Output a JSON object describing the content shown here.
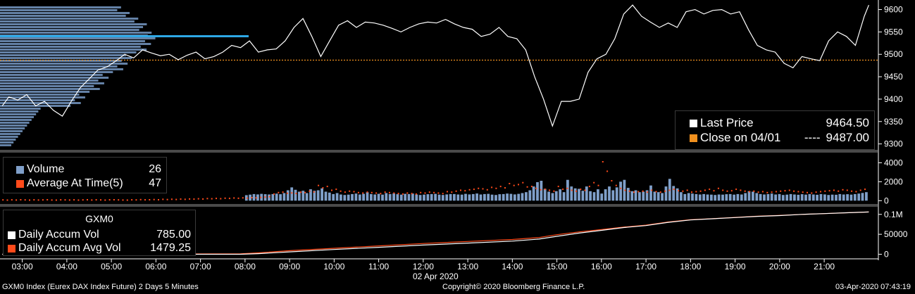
{
  "header": {
    "ticker": "GXM0",
    "date_label": "02 Apr 2020"
  },
  "price_panel": {
    "legend": [
      {
        "label": "Last Price",
        "value": "9464.50",
        "color": "#ffffff"
      },
      {
        "label": "Close on 04/01",
        "dash": "----",
        "value": "9487.00",
        "color": "#f0901e"
      }
    ]
  },
  "volume_panel": {
    "legend": [
      {
        "label": "Volume",
        "value": "26",
        "color": "#7f9fc9"
      },
      {
        "label": "Average At Time(5)",
        "value": "47",
        "color": "#ff4a1a"
      }
    ]
  },
  "accum_panel": {
    "legend": [
      {
        "label": "Daily Accum Vol",
        "value": "785.00",
        "color": "#ffffff"
      },
      {
        "label": "Daily Accum Avg Vol",
        "value": "1479.25",
        "color": "#ff4a1a"
      }
    ]
  },
  "footer": {
    "left": "GXM0 Index (Eurex DAX Index Future) 2 Days 5 Minutes",
    "center": "Copyright© 2020 Bloomberg Finance L.P.",
    "right": "03-Apr-2020 07:43:19"
  },
  "chart_data": [
    {
      "type": "line",
      "yticks": [
        9300,
        9350,
        9400,
        9450,
        9500,
        9550,
        9600
      ],
      "ylim": [
        9290,
        9615
      ],
      "xlim": [
        2.5,
        22.2
      ],
      "close_reference": 9487.0,
      "series": [
        {
          "name": "Last Price",
          "x": [
            2.55,
            2.7,
            2.9,
            3.1,
            3.3,
            3.5,
            3.7,
            3.9,
            4.1,
            4.3,
            4.5,
            4.7,
            4.9,
            5.1,
            5.3,
            5.5,
            5.7,
            5.9,
            6.1,
            6.3,
            6.5,
            6.7,
            6.9,
            7.1,
            7.3,
            7.5,
            7.7,
            7.9,
            8.1,
            8.3,
            8.5,
            8.7,
            8.9,
            9.1,
            9.3,
            9.5,
            9.7,
            9.9,
            10.1,
            10.3,
            10.5,
            10.7,
            10.9,
            11.1,
            11.3,
            11.5,
            11.7,
            11.9,
            12.1,
            12.3,
            12.5,
            12.7,
            12.9,
            13.1,
            13.3,
            13.5,
            13.7,
            13.9,
            14.1,
            14.3,
            14.5,
            14.7,
            14.9,
            15.1,
            15.3,
            15.5,
            15.7,
            15.9,
            16.1,
            16.3,
            16.5,
            16.7,
            16.9,
            17.1,
            17.3,
            17.5,
            17.7,
            17.9,
            18.1,
            18.3,
            18.5,
            18.7,
            18.9,
            19.1,
            19.3,
            19.5,
            19.7,
            19.9,
            20.1,
            20.3,
            20.5,
            20.7,
            20.9,
            21.1,
            21.3,
            21.5,
            21.7,
            21.9,
            22.0
          ],
          "y": [
            9385,
            9405,
            9398,
            9410,
            9385,
            9395,
            9375,
            9362,
            9395,
            9425,
            9445,
            9465,
            9472,
            9485,
            9500,
            9492,
            9510,
            9503,
            9497,
            9500,
            9488,
            9498,
            9505,
            9490,
            9495,
            9505,
            9520,
            9515,
            9530,
            9505,
            9510,
            9512,
            9530,
            9560,
            9580,
            9540,
            9495,
            9530,
            9565,
            9575,
            9560,
            9572,
            9570,
            9565,
            9558,
            9550,
            9560,
            9568,
            9572,
            9570,
            9578,
            9568,
            9560,
            9556,
            9540,
            9545,
            9560,
            9540,
            9535,
            9510,
            9450,
            9400,
            9340,
            9395,
            9395,
            9400,
            9460,
            9490,
            9500,
            9535,
            9590,
            9610,
            9585,
            9572,
            9560,
            9570,
            9560,
            9595,
            9600,
            9590,
            9598,
            9600,
            9590,
            9595,
            9555,
            9520,
            9510,
            9505,
            9480,
            9470,
            9495,
            9490,
            9486,
            9530,
            9550,
            9540,
            9520,
            9585,
            9610
          ]
        }
      ]
    },
    {
      "type": "bar",
      "yticks": [
        0,
        2000,
        4000
      ],
      "ylim": [
        -200,
        4400
      ],
      "xlim": [
        2.5,
        22.2
      ],
      "series": [
        {
          "name": "Volume",
          "x_start": 8.0,
          "x_end": 22.0,
          "values": [
            580,
            640,
            700,
            660,
            720,
            680,
            650,
            700,
            740,
            680,
            800,
            1100,
            1400,
            1150,
            950,
            1050,
            800,
            1200,
            1050,
            1100,
            1300,
            950,
            850,
            700,
            800,
            650,
            600,
            640,
            700,
            750,
            650,
            720,
            880,
            700,
            650,
            720,
            640,
            800,
            700,
            760,
            680,
            640,
            720,
            700,
            750,
            650,
            600,
            640,
            680,
            700,
            720,
            640,
            600,
            660,
            700,
            700,
            650,
            640,
            720,
            660,
            700,
            760,
            650,
            700,
            720,
            640,
            600,
            680,
            700,
            750,
            720,
            660,
            720,
            800,
            900,
            1100,
            1500,
            1950,
            2100,
            1250,
            950,
            800,
            1000,
            1200,
            900,
            2200,
            1500,
            1300,
            1250,
            1050,
            1500,
            1000,
            900,
            1200,
            750,
            1200,
            1500,
            1100,
            1400,
            2000,
            2200,
            1350,
            1000,
            1100,
            900,
            950,
            1100,
            1600,
            950,
            900,
            800,
            1500,
            2300,
            1550,
            1300,
            900,
            700,
            800,
            750,
            700,
            650,
            700,
            650,
            640,
            600,
            650,
            640,
            680,
            700,
            640,
            700,
            650,
            800,
            1000,
            950,
            800,
            700,
            650,
            700,
            750,
            650,
            700,
            600,
            640,
            700,
            650,
            620,
            680,
            640,
            700,
            650,
            620,
            700,
            660,
            600,
            640,
            620,
            700,
            650,
            680,
            640,
            700,
            750,
            820,
            900
          ]
        },
        {
          "name": "Average At Time(5)",
          "x_start": 2.55,
          "x_end": 22.0,
          "values": [
            80,
            60,
            90,
            70,
            100,
            80,
            60,
            90,
            70,
            80,
            100,
            70,
            60,
            90,
            80,
            70,
            90,
            60,
            80,
            100,
            70,
            90,
            80,
            60,
            90,
            100,
            80,
            70,
            60,
            90,
            80,
            110,
            90,
            100,
            120,
            100,
            140,
            120,
            150,
            130,
            160,
            140,
            180,
            160,
            200,
            170,
            220,
            200,
            240,
            210,
            260,
            240,
            280,
            250,
            300,
            270,
            320,
            300,
            340,
            380,
            420,
            700,
            850,
            900,
            780,
            820,
            760,
            900,
            850,
            1000,
            920,
            1600,
            1350,
            1500,
            1100,
            1200,
            1000,
            900,
            1000,
            950,
            850,
            800,
            900,
            850,
            800,
            750,
            900,
            850,
            800,
            750,
            700,
            800,
            750,
            700,
            850,
            800,
            900,
            850,
            800,
            750,
            950,
            900,
            1000,
            1100,
            1050,
            1150,
            1200,
            1300,
            1250,
            1150,
            1400,
            1300,
            1500,
            1350,
            1800,
            1600,
            1700,
            1900,
            1450,
            1500,
            1300,
            1150,
            1200,
            1100,
            1000,
            1500,
            1200,
            1300,
            1100,
            1000,
            1200,
            1100,
            1500,
            1900,
            1600,
            4100,
            3100,
            2100,
            1600,
            1300,
            1100,
            1000,
            900,
            950,
            1000,
            900,
            1100,
            950,
            900,
            1000,
            1100,
            1200,
            1050,
            1000,
            1100,
            900,
            950,
            1000,
            1100,
            1200,
            1050,
            1300,
            1100,
            1000,
            1050,
            1200,
            1100,
            1000,
            950,
            1000,
            900,
            950,
            850,
            900,
            950,
            1000,
            1050,
            1100,
            1000,
            950,
            900,
            850,
            800,
            900,
            950,
            1000,
            1050,
            1100,
            1000,
            1150,
            1100,
            1000,
            950,
            1100,
            1200
          ]
        }
      ]
    },
    {
      "type": "line",
      "yticks": [
        0,
        50000,
        "0.1M"
      ],
      "ylim": [
        -8000,
        112000
      ],
      "xlim": [
        2.5,
        22.2
      ],
      "xticks": [
        "03:00",
        "04:00",
        "05:00",
        "06:00",
        "07:00",
        "08:00",
        "09:00",
        "10:00",
        "11:00",
        "12:00",
        "13:00",
        "14:00",
        "15:00",
        "16:00",
        "17:00",
        "18:00",
        "19:00",
        "20:00",
        "21:00"
      ],
      "series": [
        {
          "name": "Daily Accum Vol",
          "x": [
            2.55,
            7.9,
            8.3,
            9.0,
            10.0,
            11.0,
            12.0,
            13.0,
            14.0,
            14.6,
            15.0,
            15.5,
            16.0,
            16.5,
            17.0,
            17.5,
            18.0,
            18.5,
            19.0,
            19.5,
            20.0,
            20.5,
            21.0,
            21.5,
            22.0
          ],
          "y": [
            0,
            0,
            1500,
            6000,
            12000,
            17500,
            23000,
            28000,
            33000,
            38000,
            45000,
            53000,
            60000,
            67000,
            72000,
            80000,
            86000,
            89000,
            92000,
            95000,
            97000,
            100000,
            102000,
            104000,
            106000
          ]
        },
        {
          "name": "Daily Accum Avg Vol",
          "x": [
            2.55,
            7.9,
            8.3,
            9.0,
            10.0,
            11.0,
            12.0,
            13.0,
            14.0,
            14.6,
            15.0,
            15.5,
            16.0,
            16.5,
            17.0,
            17.5,
            18.0,
            18.5,
            19.0,
            19.5,
            20.0,
            20.5,
            21.0,
            21.5,
            22.0
          ],
          "y": [
            0,
            1000,
            3500,
            9000,
            15000,
            21000,
            27000,
            32000,
            37000,
            42000,
            49000,
            56000,
            62000,
            68000,
            73000,
            81000,
            86500,
            89500,
            92500,
            95500,
            97500,
            100000,
            102000,
            104000,
            106000
          ]
        }
      ]
    }
  ]
}
